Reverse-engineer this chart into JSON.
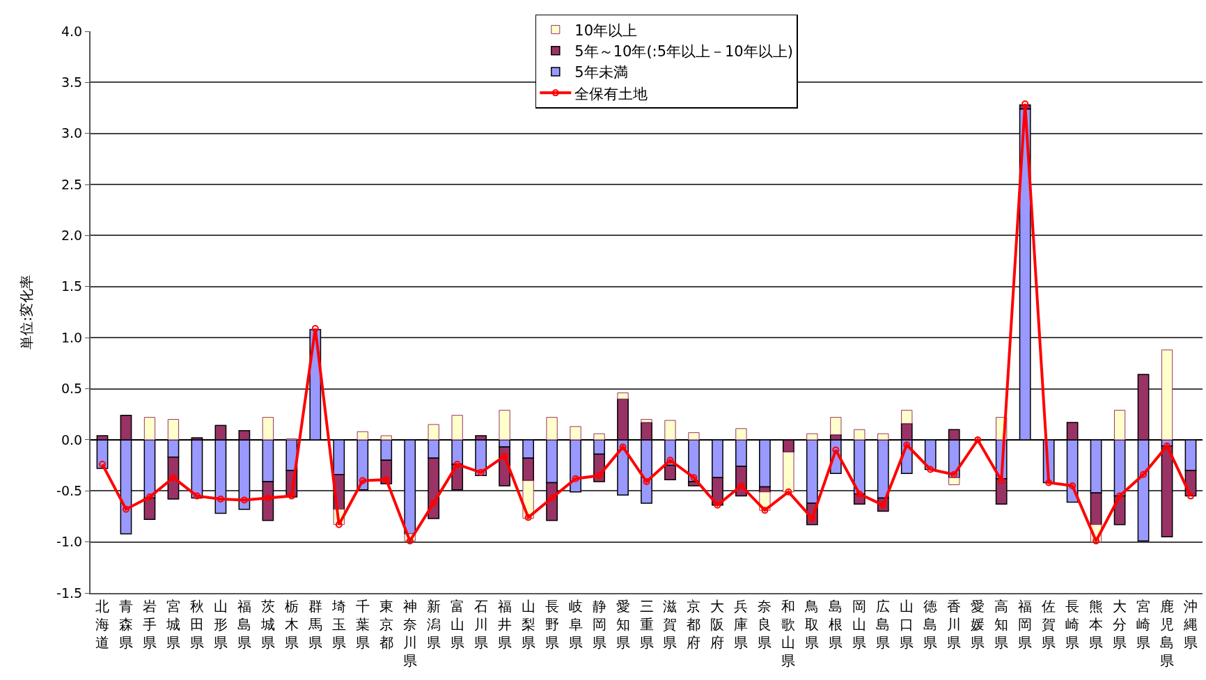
{
  "chart_data": {
    "type": "bar",
    "stacked": true,
    "ylabel": "単位:変化率",
    "ylim": [
      -1.5,
      4
    ],
    "yticks": [
      {
        "value": -1.5,
        "label": "-1.5"
      },
      {
        "value": -1,
        "label": "-1.0"
      },
      {
        "value": -0.5,
        "label": "-0.5"
      },
      {
        "value": 0,
        "label": "0.0"
      },
      {
        "value": 0.5,
        "label": "0.5"
      },
      {
        "value": 1,
        "label": "1.0"
      },
      {
        "value": 1.5,
        "label": "1.5"
      },
      {
        "value": 2,
        "label": "2.0"
      },
      {
        "value": 2.5,
        "label": "2.5"
      },
      {
        "value": 3,
        "label": "3.0"
      },
      {
        "value": 3.5,
        "label": "3.5"
      },
      {
        "value": 4,
        "label": "4.0"
      }
    ],
    "grid": "y",
    "legend": "top",
    "marker": "circle",
    "categories": [
      "北海道",
      "青森県",
      "岩手県",
      "宮城県",
      "秋田県",
      "山形県",
      "福島県",
      "茨城県",
      "栃木県",
      "群馬県",
      "埼玉県",
      "千葉県",
      "東京都",
      "神奈川県",
      "新潟県",
      "富山県",
      "石川県",
      "福井県",
      "山梨県",
      "長野県",
      "岐阜県",
      "静岡県",
      "愛知県",
      "三重県",
      "滋賀県",
      "京都府",
      "大阪府",
      "兵庫県",
      "奈良県",
      "和歌山県",
      "鳥取県",
      "島根県",
      "岡山県",
      "広島県",
      "山口県",
      "徳島県",
      "香川県",
      "愛媛県",
      "高知県",
      "福岡県",
      "佐賀県",
      "長崎県",
      "熊本県",
      "大分県",
      "宮崎県",
      "鹿児島県",
      "沖縄県"
    ],
    "series": [
      {
        "name": "5年未満",
        "color": "#9999ff",
        "values": [
          -0.28,
          -0.92,
          -0.57,
          -0.17,
          -0.57,
          -0.72,
          -0.68,
          -0.41,
          -0.3,
          1.08,
          -0.34,
          -0.49,
          -0.2,
          -0.92,
          -0.18,
          -0.24,
          -0.35,
          -0.07,
          -0.18,
          -0.42,
          -0.51,
          -0.14,
          -0.54,
          -0.62,
          -0.25,
          -0.41,
          -0.37,
          -0.26,
          -0.46,
          0,
          -0.62,
          -0.33,
          -0.53,
          -0.57,
          -0.33,
          -0.29,
          -0.37,
          0,
          -0.38,
          3.24,
          -0.42,
          -0.61,
          -0.52,
          -0.55,
          -0.99,
          -0.06,
          -0.3
        ]
      },
      {
        "name": "5年～10年(:5年以上－10年以上)",
        "color": "#993366",
        "values": [
          0.04,
          0.24,
          -0.21,
          -0.41,
          0.02,
          0.14,
          0.09,
          -0.38,
          -0.26,
          0,
          -0.34,
          0,
          -0.23,
          0,
          -0.59,
          -0.25,
          0.04,
          -0.38,
          -0.22,
          -0.37,
          0,
          -0.27,
          0.4,
          0.17,
          -0.14,
          -0.04,
          -0.27,
          -0.29,
          -0.05,
          -0.12,
          -0.21,
          0.05,
          -0.1,
          -0.13,
          0.16,
          0,
          0.1,
          0,
          -0.25,
          0.04,
          0,
          0.17,
          -0.31,
          -0.28,
          0.64,
          -0.89,
          -0.25
        ]
      },
      {
        "name": "10年以上",
        "color": "#ffffcc",
        "values": [
          0,
          0,
          0.22,
          0.2,
          0,
          0,
          0,
          0.22,
          0.01,
          0,
          -0.15,
          0.08,
          0.04,
          -0.07,
          0.15,
          0.24,
          0,
          0.29,
          -0.37,
          0.22,
          0.13,
          0.06,
          0.06,
          0.03,
          0.19,
          0.07,
          0,
          0.11,
          -0.18,
          -0.39,
          0.06,
          0.17,
          0.1,
          0.06,
          0.13,
          0,
          -0.07,
          0,
          0.22,
          0,
          0,
          0,
          -0.17,
          0.29,
          0,
          0.88,
          0
        ]
      },
      {
        "name": "全保有土地",
        "type": "line",
        "color": "#ff0000",
        "values": [
          -0.24,
          -0.68,
          -0.56,
          -0.37,
          -0.55,
          -0.58,
          -0.59,
          -0.57,
          -0.55,
          1.09,
          -0.83,
          -0.4,
          -0.39,
          -0.99,
          -0.62,
          -0.24,
          -0.32,
          -0.16,
          -0.76,
          -0.57,
          -0.38,
          -0.35,
          -0.07,
          -0.41,
          -0.2,
          -0.37,
          -0.64,
          -0.45,
          -0.69,
          -0.51,
          -0.77,
          -0.1,
          -0.53,
          -0.64,
          -0.05,
          -0.29,
          -0.34,
          0,
          -0.4,
          3.29,
          -0.42,
          -0.45,
          -0.99,
          -0.55,
          -0.34,
          -0.06,
          -0.55
        ]
      }
    ]
  }
}
